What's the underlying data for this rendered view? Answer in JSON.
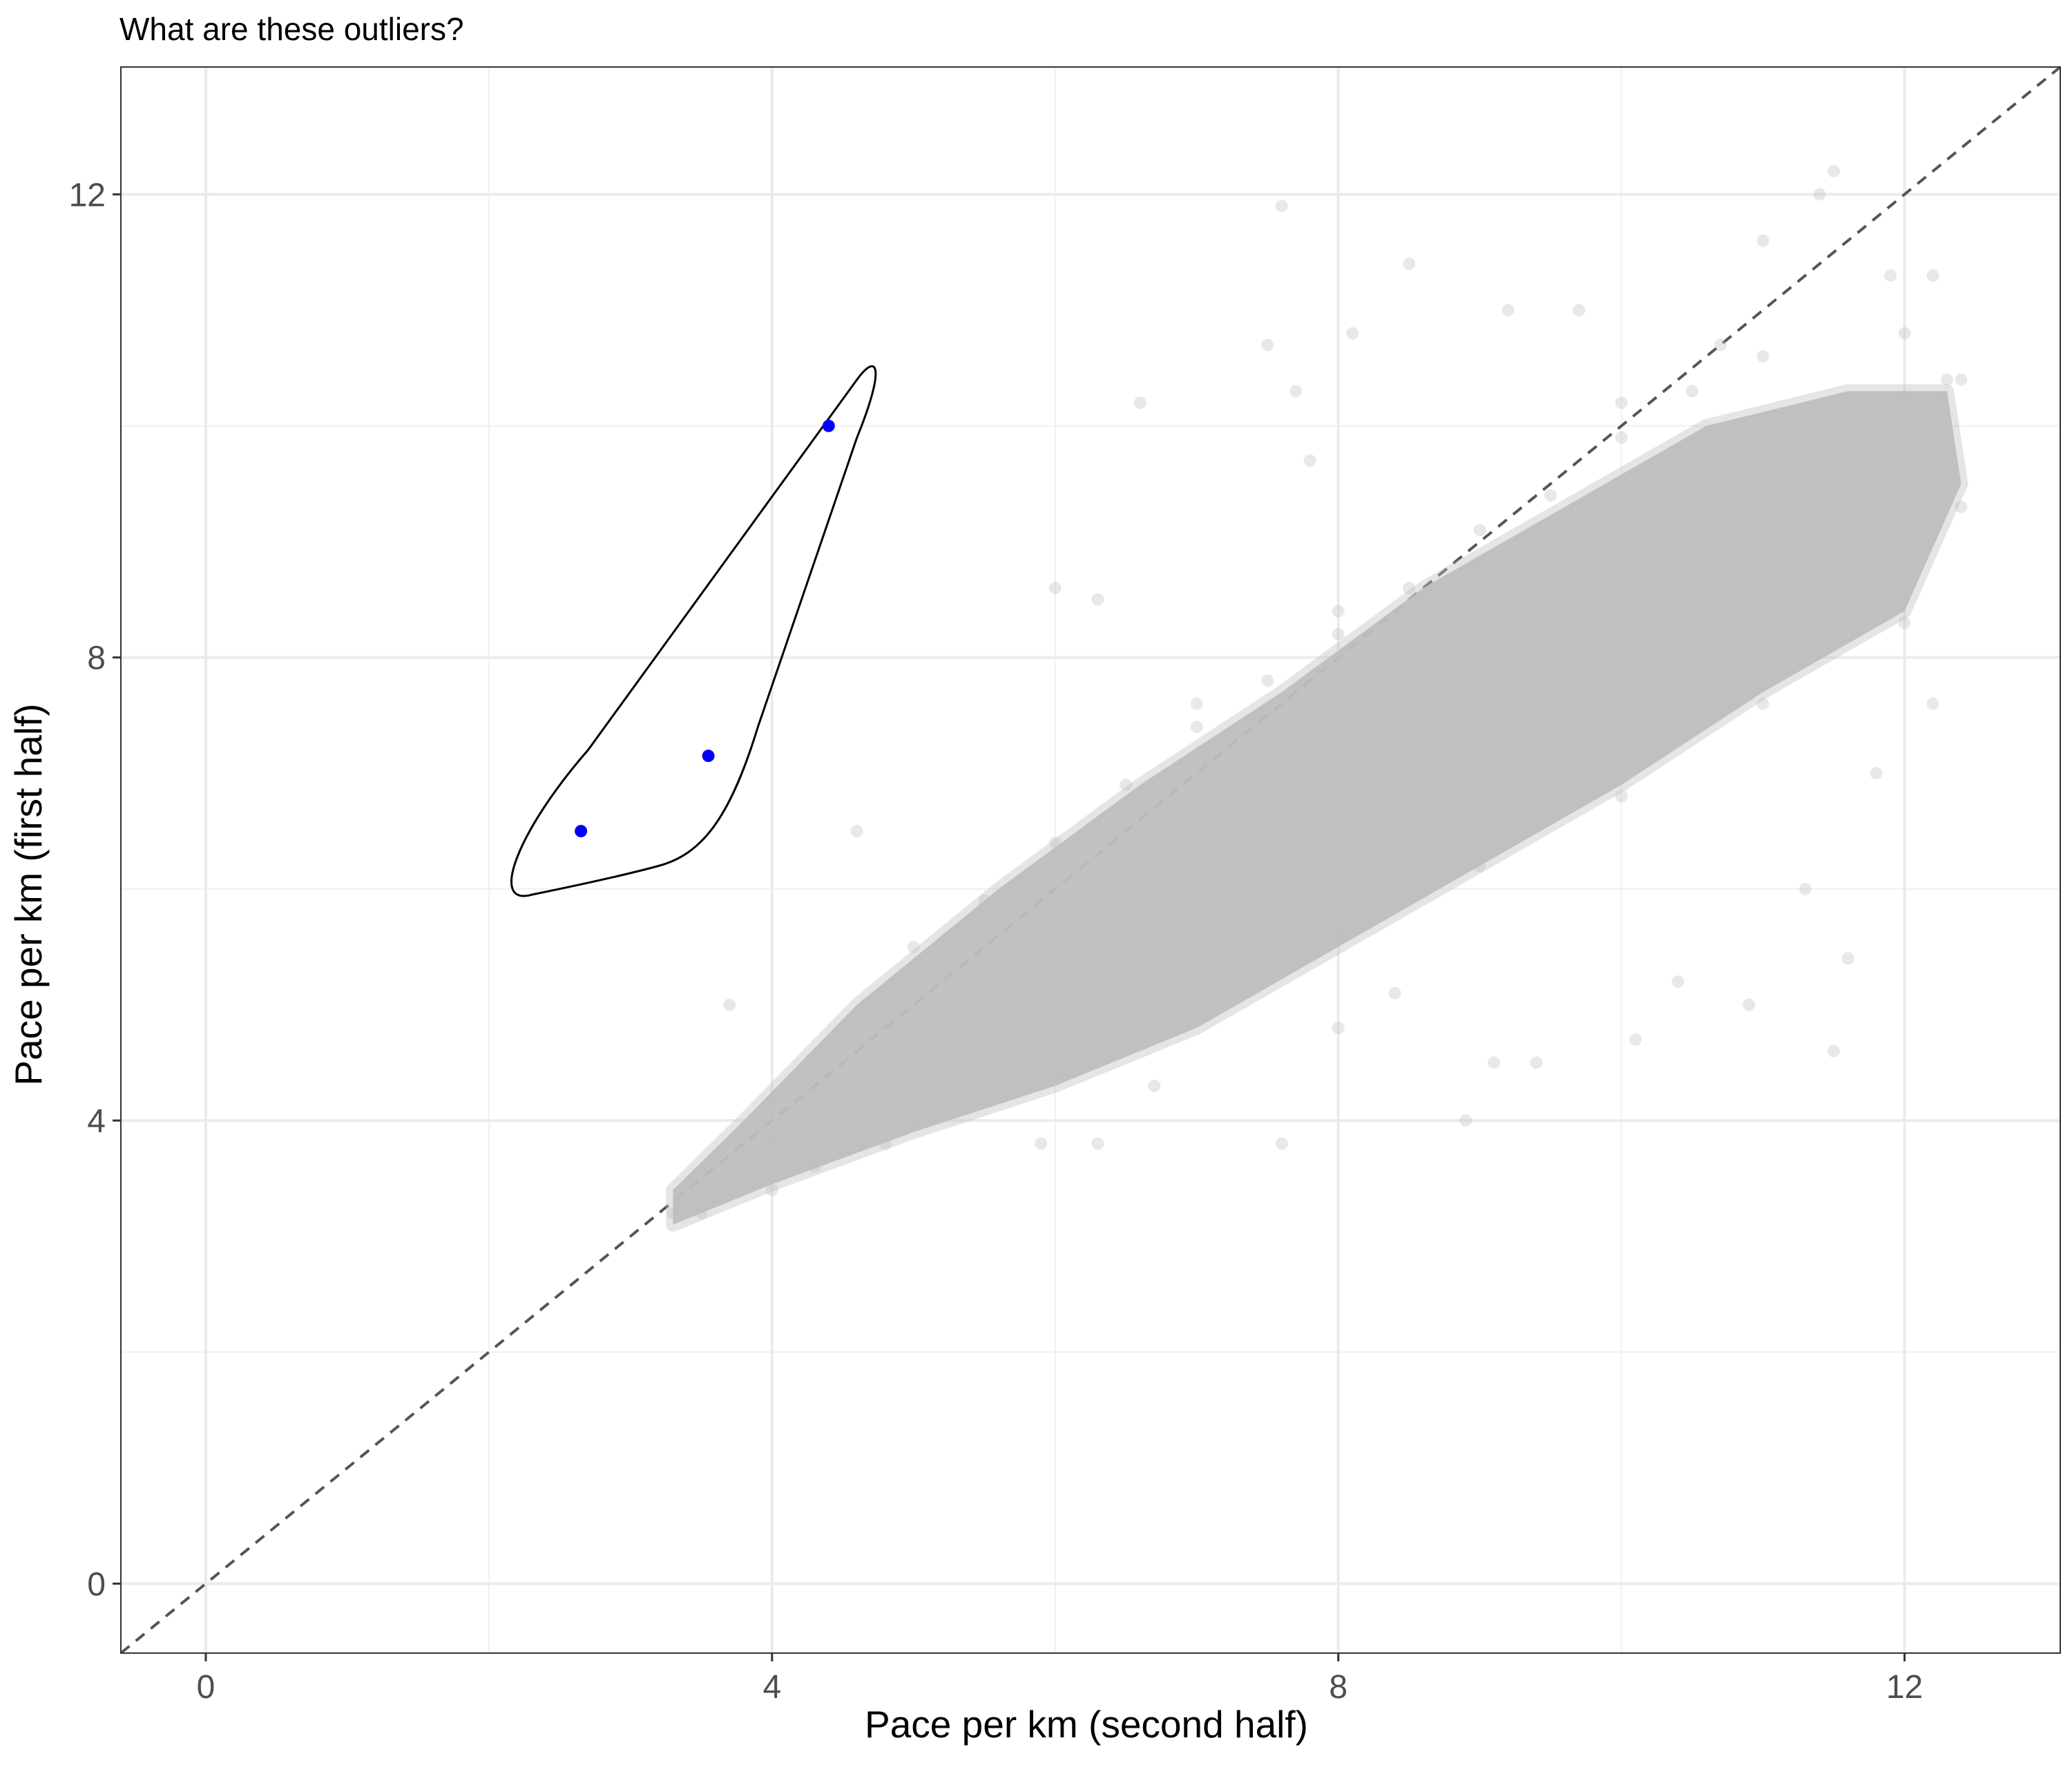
{
  "chart_data": {
    "type": "scatter",
    "title": "What are these outliers?",
    "xlabel": "Pace per km (second half)",
    "ylabel": "Pace per km (first half)",
    "xlim": [
      -0.6,
      13.1
    ],
    "ylim": [
      -0.6,
      13.1
    ],
    "xticks": [
      0,
      4,
      8,
      12
    ],
    "yticks": [
      0,
      4,
      8,
      12
    ],
    "grid": true,
    "reference_line": {
      "slope": 1,
      "intercept": 0,
      "style": "dashed",
      "color": "#555555"
    },
    "background_points": {
      "color": "#bebebe",
      "opacity": 0.35,
      "description_of_cloud": "dense cloud of runners from about (3.3, 3.2) to (12.5, 10.5), mostly below the y = x line",
      "points": [
        [
          3.3,
          3.2
        ],
        [
          3.6,
          3.4
        ],
        [
          3.8,
          3.6
        ],
        [
          4.0,
          3.8
        ],
        [
          4.3,
          4.0
        ],
        [
          4.6,
          4.2
        ],
        [
          5.0,
          4.5
        ],
        [
          5.4,
          4.8
        ],
        [
          5.8,
          5.1
        ],
        [
          6.2,
          5.5
        ],
        [
          6.6,
          5.8
        ],
        [
          7.0,
          6.1
        ],
        [
          7.4,
          6.5
        ],
        [
          7.8,
          6.8
        ],
        [
          8.2,
          7.1
        ],
        [
          8.6,
          7.5
        ],
        [
          9.0,
          7.8
        ],
        [
          9.4,
          8.2
        ],
        [
          9.8,
          8.5
        ],
        [
          10.2,
          8.8
        ],
        [
          10.6,
          9.1
        ],
        [
          11.0,
          9.4
        ],
        [
          11.4,
          9.6
        ],
        [
          11.8,
          9.9
        ],
        [
          12.2,
          10.1
        ],
        [
          12.4,
          10.4
        ],
        [
          3.7,
          5.0
        ],
        [
          4.6,
          6.5
        ],
        [
          6.0,
          8.6
        ],
        [
          6.3,
          8.5
        ],
        [
          6.6,
          10.2
        ],
        [
          7.5,
          10.7
        ],
        [
          7.6,
          11.9
        ],
        [
          7.7,
          10.3
        ],
        [
          7.8,
          9.7
        ],
        [
          8.1,
          10.8
        ],
        [
          8.5,
          11.4
        ],
        [
          9.2,
          11.0
        ],
        [
          9.7,
          11.0
        ],
        [
          10.7,
          10.7
        ],
        [
          11.5,
          12.2
        ],
        [
          11.4,
          12.0
        ],
        [
          11.0,
          11.6
        ],
        [
          11.9,
          11.3
        ],
        [
          12.2,
          11.3
        ],
        [
          12.3,
          10.4
        ],
        [
          12.4,
          9.3
        ],
        [
          12.2,
          7.6
        ],
        [
          11.8,
          7.0
        ],
        [
          11.3,
          6.0
        ],
        [
          11.6,
          5.4
        ],
        [
          11.5,
          4.6
        ],
        [
          10.9,
          5.0
        ],
        [
          10.4,
          5.2
        ],
        [
          10.1,
          4.7
        ],
        [
          9.4,
          4.5
        ],
        [
          9.1,
          4.5
        ],
        [
          8.9,
          4.0
        ],
        [
          8.4,
          5.1
        ],
        [
          8.0,
          4.8
        ],
        [
          7.6,
          3.8
        ],
        [
          6.7,
          4.3
        ],
        [
          6.3,
          3.8
        ],
        [
          5.9,
          3.8
        ],
        [
          5.5,
          4.4
        ],
        [
          4.8,
          3.8
        ],
        [
          4.3,
          3.6
        ],
        [
          4.0,
          3.4
        ],
        [
          3.5,
          3.2
        ],
        [
          5.0,
          5.5
        ],
        [
          5.5,
          5.9
        ],
        [
          6.0,
          6.4
        ],
        [
          6.5,
          6.9
        ],
        [
          7.0,
          7.4
        ],
        [
          7.5,
          7.8
        ],
        [
          8.0,
          8.2
        ],
        [
          8.5,
          8.6
        ],
        [
          9.0,
          9.1
        ],
        [
          9.5,
          9.4
        ],
        [
          10.0,
          9.9
        ],
        [
          10.5,
          10.3
        ],
        [
          11.0,
          10.6
        ],
        [
          6.0,
          4.4
        ],
        [
          7.0,
          5.0
        ],
        [
          8.0,
          5.6
        ],
        [
          9.0,
          6.2
        ],
        [
          10.0,
          6.8
        ],
        [
          11.0,
          7.6
        ],
        [
          12.0,
          8.3
        ],
        [
          5.0,
          4.0
        ],
        [
          6.5,
          5.2
        ],
        [
          7.5,
          5.9
        ],
        [
          8.5,
          6.6
        ],
        [
          9.5,
          7.2
        ],
        [
          10.5,
          7.8
        ],
        [
          11.5,
          8.6
        ],
        [
          5.2,
          5.0
        ],
        [
          6.2,
          5.9
        ],
        [
          7.2,
          6.7
        ],
        [
          8.2,
          7.6
        ],
        [
          9.2,
          8.4
        ],
        [
          10.2,
          9.3
        ],
        [
          11.2,
          10.0
        ],
        [
          7.0,
          7.6
        ],
        [
          8.0,
          8.4
        ],
        [
          9.0,
          8.8
        ],
        [
          10.0,
          10.2
        ],
        [
          11.0,
          9.9
        ],
        [
          12.0,
          10.8
        ]
      ]
    },
    "highlighted_points": {
      "color": "#0000ff",
      "points": [
        [
          2.65,
          6.5
        ],
        [
          3.55,
          7.15
        ],
        [
          4.4,
          10.0
        ]
      ]
    },
    "annotation": "outline drawn around the three highlighted outlier points"
  }
}
